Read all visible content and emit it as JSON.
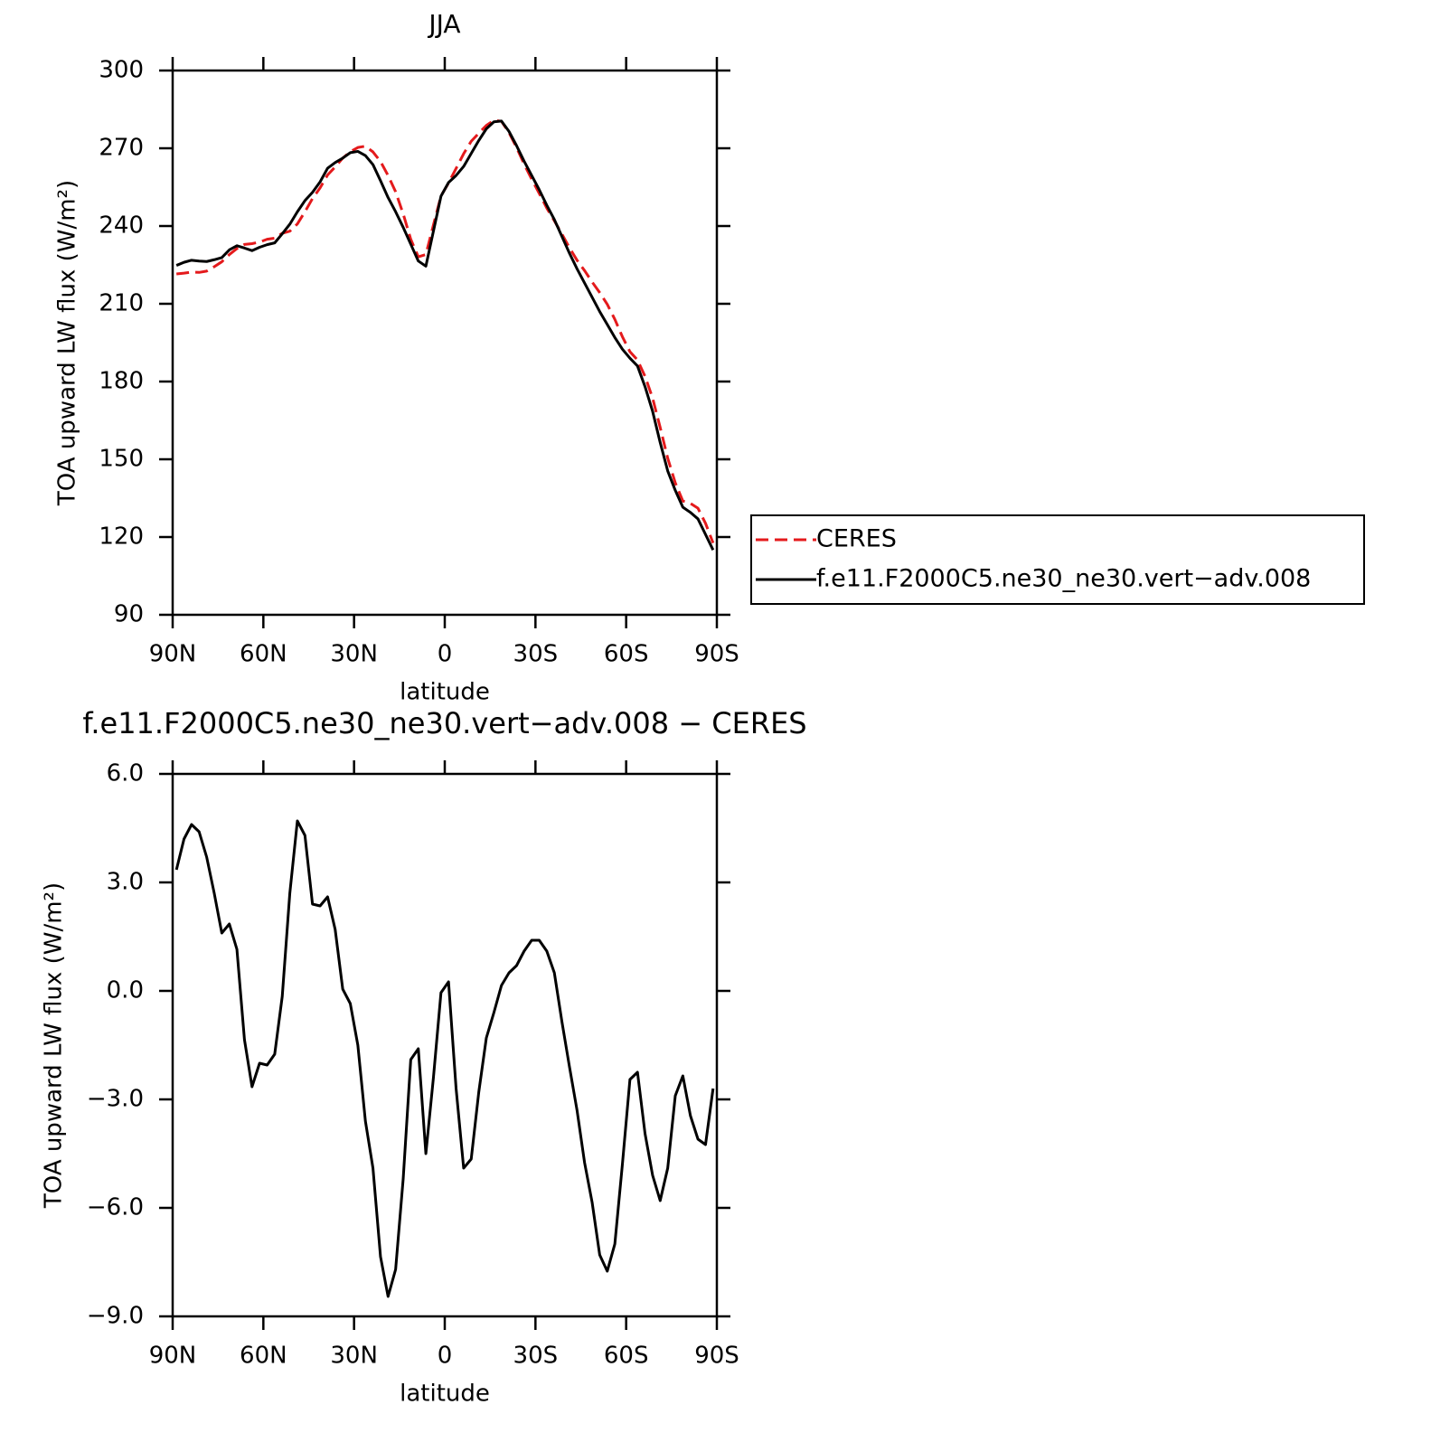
{
  "chart_data": [
    {
      "type": "line",
      "title": "JJA",
      "x_label": "latitude",
      "y_label": "TOA upward LW flux (W/m²)",
      "xlim": [
        90,
        -90
      ],
      "xticks": [
        {
          "value": 90,
          "label": "90N"
        },
        {
          "value": 60,
          "label": "60N"
        },
        {
          "value": 30,
          "label": "30N"
        },
        0,
        {
          "value": -30,
          "label": "30S"
        },
        {
          "value": -60,
          "label": "60S"
        },
        {
          "value": -90,
          "label": "90S"
        }
      ],
      "ylim": [
        90,
        300
      ],
      "yticks": [
        90,
        120,
        150,
        180,
        210,
        240,
        270,
        300
      ],
      "legend": "right",
      "x": [
        88.75,
        86.25,
        83.75,
        81.25,
        78.75,
        76.25,
        73.75,
        71.25,
        68.75,
        66.25,
        63.75,
        61.25,
        58.75,
        56.25,
        53.75,
        51.25,
        48.75,
        46.25,
        43.75,
        41.25,
        38.75,
        36.25,
        33.75,
        31.25,
        28.75,
        26.25,
        23.75,
        21.25,
        18.75,
        16.25,
        13.75,
        11.25,
        8.75,
        6.25,
        3.75,
        1.25,
        -1.25,
        -3.75,
        -6.25,
        -8.75,
        -11.25,
        -13.75,
        -16.25,
        -18.75,
        -21.25,
        -23.75,
        -26.25,
        -28.75,
        -31.25,
        -33.75,
        -36.25,
        -38.75,
        -41.25,
        -43.75,
        -46.25,
        -48.75,
        -51.25,
        -53.75,
        -56.25,
        -58.75,
        -61.25,
        -63.75,
        -66.25,
        -68.75,
        -71.25,
        -73.75,
        -76.25,
        -78.75,
        -81.25,
        -83.75,
        -86.25,
        -88.75
      ],
      "series": [
        {
          "name": "CERES",
          "color": "#e41a1c",
          "line_style": "dashed",
          "values": [
            221.5,
            221.8,
            222.2,
            222.1,
            222.6,
            224.3,
            226.2,
            229.0,
            231.3,
            232.9,
            233.2,
            233.8,
            234.9,
            235.3,
            237.2,
            238.0,
            240.8,
            245.5,
            250.6,
            254.7,
            259.7,
            262.8,
            266.2,
            268.7,
            270.3,
            270.8,
            268.6,
            264.9,
            259.5,
            253.2,
            244.7,
            234.9,
            228.1,
            229.0,
            240.4,
            251.6,
            256.6,
            262.2,
            267.9,
            272.7,
            275.8,
            278.8,
            280.8,
            280.4,
            276.0,
            270.3,
            263.9,
            258.1,
            252.6,
            246.9,
            242.0,
            236.9,
            231.6,
            226.8,
            222.8,
            218.4,
            214.3,
            209.8,
            204.0,
            197.3,
            191.5,
            188.3,
            182.0,
            173.6,
            162.3,
            150.4,
            140.9,
            133.9,
            133.0,
            131.1,
            125.3,
            117.7
          ]
        },
        {
          "name": "f.e11.F2000C5.ne30_ne30.vert−adv.008",
          "color": "#000000",
          "line_style": "solid",
          "values": [
            224.8,
            226.0,
            226.8,
            226.5,
            226.3,
            227.0,
            227.8,
            230.8,
            232.4,
            231.5,
            230.5,
            231.8,
            232.8,
            233.5,
            237.0,
            240.7,
            245.5,
            249.8,
            253.0,
            257.0,
            262.3,
            264.5,
            266.2,
            268.3,
            268.8,
            267.2,
            263.7,
            257.5,
            251.0,
            245.5,
            239.5,
            233.0,
            226.5,
            224.5,
            238.0,
            251.5,
            256.8,
            259.5,
            263.0,
            268.0,
            273.0,
            277.5,
            280.2,
            280.5,
            276.5,
            271.0,
            265.0,
            259.5,
            254.0,
            248.0,
            242.5,
            236.0,
            229.5,
            223.5,
            218.0,
            212.5,
            207.0,
            202.0,
            197.0,
            192.5,
            189.0,
            186.0,
            178.0,
            168.5,
            156.5,
            145.5,
            138.0,
            131.5,
            129.5,
            127.0,
            121.0,
            115.0
          ]
        }
      ]
    },
    {
      "type": "line",
      "title": "f.e11.F2000C5.ne30_ne30.vert−adv.008 − CERES",
      "x_label": "latitude",
      "y_label": "TOA upward LW flux (W/m²)",
      "xlim": [
        90,
        -90
      ],
      "xticks": [
        {
          "value": 90,
          "label": "90N"
        },
        {
          "value": 60,
          "label": "60N"
        },
        {
          "value": 30,
          "label": "30N"
        },
        0,
        {
          "value": -30,
          "label": "30S"
        },
        {
          "value": -60,
          "label": "60S"
        },
        {
          "value": -90,
          "label": "90S"
        }
      ],
      "ylim": [
        -9,
        6
      ],
      "yticks": [
        {
          "value": -9,
          "label": "−9.0"
        },
        {
          "value": -6,
          "label": "−6.0"
        },
        {
          "value": -3,
          "label": "−3.0"
        },
        {
          "value": 0,
          "label": "0.0"
        },
        {
          "value": 3,
          "label": "3.0"
        },
        {
          "value": 6,
          "label": "6.0"
        }
      ],
      "x": [
        88.75,
        86.25,
        83.75,
        81.25,
        78.75,
        76.25,
        73.75,
        71.25,
        68.75,
        66.25,
        63.75,
        61.25,
        58.75,
        56.25,
        53.75,
        51.25,
        48.75,
        46.25,
        43.75,
        41.25,
        38.75,
        36.25,
        33.75,
        31.25,
        28.75,
        26.25,
        23.75,
        21.25,
        18.75,
        16.25,
        13.75,
        11.25,
        8.75,
        6.25,
        3.75,
        1.25,
        -1.25,
        -3.75,
        -6.25,
        -8.75,
        -11.25,
        -13.75,
        -16.25,
        -18.75,
        -21.25,
        -23.75,
        -26.25,
        -28.75,
        -31.25,
        -33.75,
        -36.25,
        -38.75,
        -41.25,
        -43.75,
        -46.25,
        -48.75,
        -51.25,
        -53.75,
        -56.25,
        -58.75,
        -61.25,
        -63.75,
        -66.25,
        -68.75,
        -71.25,
        -73.75,
        -76.25,
        -78.75,
        -81.25,
        -83.75,
        -86.25,
        -88.75
      ],
      "color": "#000000",
      "values": [
        3.35,
        4.2,
        4.6,
        4.4,
        3.7,
        2.7,
        1.6,
        1.85,
        1.15,
        -1.35,
        -2.65,
        -2.0,
        -2.05,
        -1.75,
        -0.15,
        2.7,
        4.7,
        4.3,
        2.4,
        2.35,
        2.6,
        1.7,
        0.05,
        -0.35,
        -1.5,
        -3.6,
        -4.9,
        -7.35,
        -8.45,
        -7.7,
        -5.2,
        -1.9,
        -1.6,
        -4.5,
        -2.4,
        -0.05,
        0.25,
        -2.7,
        -4.9,
        -4.65,
        -2.8,
        -1.3,
        -0.6,
        0.15,
        0.5,
        0.7,
        1.1,
        1.4,
        1.4,
        1.1,
        0.5,
        -0.85,
        -2.1,
        -3.3,
        -4.75,
        -5.85,
        -7.3,
        -7.75,
        -7.0,
        -4.8,
        -2.45,
        -2.25,
        -3.95,
        -5.1,
        -5.8,
        -4.9,
        -2.9,
        -2.35,
        -3.45,
        -4.1,
        -4.25,
        -2.7
      ]
    }
  ]
}
